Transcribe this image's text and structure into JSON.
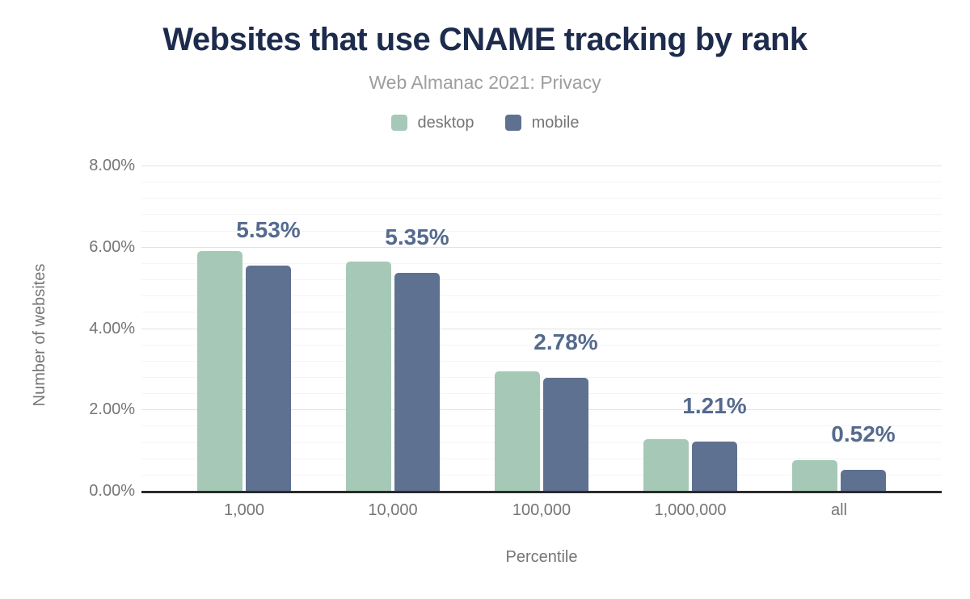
{
  "chart_data": {
    "type": "bar",
    "title": "Websites that use CNAME tracking by rank",
    "subtitle": "Web Almanac 2021: Privacy",
    "xlabel": "Percentile",
    "ylabel": "Number of websites",
    "categories": [
      "1,000",
      "10,000",
      "100,000",
      "1,000,000",
      "all"
    ],
    "series": [
      {
        "name": "desktop",
        "color": "#a6c9b7",
        "values": [
          5.9,
          5.63,
          2.94,
          1.28,
          0.76
        ]
      },
      {
        "name": "mobile",
        "color": "#5f7190",
        "values": [
          5.53,
          5.35,
          2.78,
          1.21,
          0.52
        ]
      }
    ],
    "bar_labels": [
      "5.53%",
      "5.35%",
      "2.78%",
      "1.21%",
      "0.52%"
    ],
    "bar_labels_series": "mobile",
    "ylim": [
      0,
      8
    ],
    "yticks": [
      {
        "value": 0,
        "label": "0.00%"
      },
      {
        "value": 2,
        "label": "2.00%"
      },
      {
        "value": 4,
        "label": "4.00%"
      },
      {
        "value": 6,
        "label": "6.00%"
      },
      {
        "value": 8,
        "label": "8.00%"
      }
    ],
    "minor_grid_step": 0.4,
    "grid": true,
    "legend_position": "top",
    "colors": {
      "title": "#1d2c4d",
      "subtitle": "#9e9e9e",
      "axis_text": "#757575",
      "bar_label": "#556a8e",
      "grid_major": "#e2e2e2",
      "grid_minor": "#f4f4f4",
      "axis_line": "#2b2b2b",
      "background": "#ffffff"
    }
  }
}
